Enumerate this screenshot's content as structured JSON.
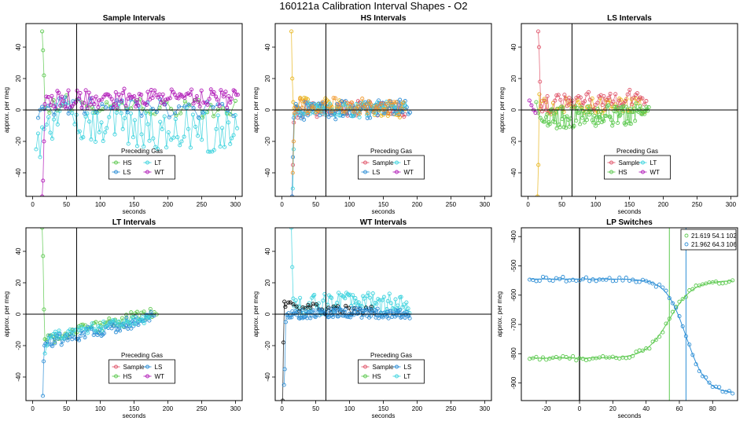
{
  "figure_title": "160121a   Calibration Interval Shapes - O2",
  "colors": {
    "Sample": "#E0566B",
    "HS": "#5CC94F",
    "LS": "#2E8FD6",
    "LT": "#3ED3DE",
    "WT": "#B11BB8",
    "ZERO": "#111111",
    "gold": "#E8B51C",
    "orange": "#F29A2E"
  },
  "chart_data": [
    {
      "id": "sample",
      "type": "scatter",
      "title": "Sample Intervals",
      "xlabel": "seconds",
      "ylabel": "approx. per meg",
      "xlim": [
        -10,
        310
      ],
      "ylim": [
        -55,
        55
      ],
      "xticks": [
        0,
        50,
        100,
        150,
        200,
        250,
        300
      ],
      "yticks": [
        -40,
        -20,
        0,
        20,
        40
      ],
      "vline": 65,
      "hline": 0,
      "legend": {
        "title": "Preceding Gas",
        "position": "bottom-center",
        "entries": [
          "HS",
          "LT",
          "LS",
          "WT"
        ]
      },
      "series": [
        {
          "name": "HS",
          "spike": true,
          "x0": 14,
          "y0": 50,
          "y1": 38,
          "y2": 22,
          "levels": [
            4,
            2,
            0
          ],
          "noise": 6,
          "xmax": 300,
          "dx": 6
        },
        {
          "name": "LT",
          "spike": false,
          "x0": 5,
          "y0": -25,
          "y1": -15,
          "y2": -30,
          "levels": [
            -5,
            -10,
            -15
          ],
          "noise": 14,
          "xmax": 305,
          "dx": 3
        },
        {
          "name": "LS",
          "spike": false,
          "x0": 8,
          "y0": -5,
          "y1": 0,
          "y2": 2,
          "levels": [
            3,
            1,
            0
          ],
          "noise": 6,
          "xmax": 300,
          "dx": 7
        },
        {
          "name": "WT",
          "spike": true,
          "x0": 14,
          "y0": -55,
          "y1": -45,
          "y2": -20,
          "levels": [
            6,
            8,
            7
          ],
          "noise": 6,
          "xmax": 305,
          "dx": 2.5
        }
      ]
    },
    {
      "id": "hs",
      "type": "scatter",
      "title": "HS Intervals",
      "xlabel": "seconds",
      "ylabel": "approx. per meg",
      "xlim": [
        -10,
        310
      ],
      "ylim": [
        -55,
        55
      ],
      "xticks": [
        0,
        50,
        100,
        150,
        200,
        250,
        300
      ],
      "yticks": [
        -40,
        -20,
        0,
        20,
        40
      ],
      "vline": 65,
      "hline": 0,
      "legend": {
        "title": "Preceding Gas",
        "position": "bottom-center",
        "entries": [
          "Sample",
          "LT",
          "LS",
          "WT"
        ]
      },
      "series": [
        {
          "name": "gold",
          "spike": true,
          "x0": 14,
          "y0": 50,
          "y1": 20,
          "y2": 5,
          "levels": [
            3,
            2,
            0
          ],
          "noise": 5,
          "xmax": 185,
          "dx": 3
        },
        {
          "name": "Sample",
          "spike": true,
          "x0": 15,
          "y0": -55,
          "y1": -35,
          "y2": -8,
          "levels": [
            0,
            1,
            0
          ],
          "noise": 5,
          "xmax": 185,
          "dx": 2.5
        },
        {
          "name": "LS",
          "spike": true,
          "x0": 15,
          "y0": -55,
          "y1": -30,
          "y2": -5,
          "levels": [
            -1,
            0,
            2
          ],
          "noise": 6,
          "xmax": 190,
          "dx": 2
        },
        {
          "name": "LT",
          "spike": true,
          "x0": 16,
          "y0": -50,
          "y1": -25,
          "y2": -3,
          "levels": [
            2,
            0,
            1
          ],
          "noise": 5,
          "xmax": 185,
          "dx": 3
        },
        {
          "name": "orange",
          "spike": true,
          "x0": 16,
          "y0": -40,
          "y1": -20,
          "y2": -2,
          "levels": [
            2,
            3,
            1
          ],
          "noise": 5,
          "xmax": 180,
          "dx": 3
        }
      ]
    },
    {
      "id": "ls",
      "type": "scatter",
      "title": "LS Intervals",
      "xlabel": "seconds",
      "ylabel": "approx. per meg",
      "xlim": [
        -10,
        310
      ],
      "ylim": [
        -55,
        55
      ],
      "xticks": [
        0,
        50,
        100,
        150,
        200,
        250,
        300
      ],
      "yticks": [
        -40,
        -20,
        0,
        20,
        40
      ],
      "vline": 65,
      "hline": 0,
      "legend": {
        "title": "Preceding Gas",
        "position": "bottom-center",
        "entries": [
          "Sample",
          "LT",
          "HS",
          "WT"
        ]
      },
      "series": [
        {
          "name": "gold",
          "spike": true,
          "x0": 14,
          "y0": -55,
          "y1": -35,
          "y2": 10,
          "levels": [
            2,
            3,
            2
          ],
          "noise": 5,
          "xmax": 175,
          "dx": 3
        },
        {
          "name": "Sample",
          "spike": true,
          "x0": 15,
          "y0": 50,
          "y1": 40,
          "y2": 18,
          "levels": [
            4,
            6,
            8
          ],
          "noise": 6,
          "xmax": 175,
          "dx": 2.5
        },
        {
          "name": "HS",
          "spike": false,
          "x0": 12,
          "y0": 5,
          "y1": -2,
          "y2": -5,
          "levels": [
            -5,
            -4,
            -2
          ],
          "noise": 7,
          "xmax": 180,
          "dx": 1.5
        },
        {
          "name": "WT",
          "spike": false,
          "x0": 2,
          "y0": 6,
          "y1": 3,
          "y2": 0,
          "levels": [
            0,
            1,
            0
          ],
          "noise": 2,
          "xmax": 14,
          "dx": 3
        }
      ]
    },
    {
      "id": "lt",
      "type": "scatter",
      "title": "LT Intervals",
      "xlabel": "seconds",
      "ylabel": "approx. per meg",
      "xlim": [
        -10,
        310
      ],
      "ylim": [
        -55,
        55
      ],
      "xticks": [
        0,
        50,
        100,
        150,
        200,
        250,
        300
      ],
      "yticks": [
        -40,
        -20,
        0,
        20,
        40
      ],
      "vline": 65,
      "hline": 0,
      "legend": {
        "title": "Preceding Gas",
        "position": "bottom-center",
        "entries": [
          "Sample",
          "LS",
          "HS",
          "WT"
        ]
      },
      "series": [
        {
          "name": "HS",
          "spike": true,
          "x0": 14,
          "y0": 55,
          "y1": 37,
          "y2": 3,
          "levels": [
            -15,
            -8,
            2
          ],
          "noise": 4,
          "xmax": 185,
          "dx": 3
        },
        {
          "name": "LS",
          "spike": true,
          "x0": 15,
          "y0": -52,
          "y1": -30,
          "y2": -20,
          "levels": [
            -18,
            -10,
            -2
          ],
          "noise": 4,
          "xmax": 180,
          "dx": 2
        },
        {
          "name": "LT",
          "spike": false,
          "x0": 18,
          "y0": -25,
          "y1": -20,
          "y2": -15,
          "levels": [
            -15,
            -8,
            -3
          ],
          "noise": 3,
          "xmax": 175,
          "dx": 3
        }
      ]
    },
    {
      "id": "wt",
      "type": "scatter",
      "title": "WT Intervals",
      "xlabel": "seconds",
      "ylabel": "approx. per meg",
      "xlim": [
        -10,
        310
      ],
      "ylim": [
        -55,
        55
      ],
      "xticks": [
        0,
        50,
        100,
        150,
        200,
        250,
        300
      ],
      "yticks": [
        -40,
        -20,
        0,
        20,
        40
      ],
      "vline": 65,
      "hline": 0,
      "legend": {
        "title": "Preceding Gas",
        "position": "bottom-center",
        "entries": [
          "Sample",
          "LS",
          "HS",
          "LT"
        ]
      },
      "series": [
        {
          "name": "LT",
          "spike": true,
          "x0": 14,
          "y0": 55,
          "y1": 30,
          "y2": 10,
          "levels": [
            6,
            8,
            6
          ],
          "noise": 7,
          "xmax": 190,
          "dx": 2
        },
        {
          "name": "ZERO",
          "spike": true,
          "x0": 1,
          "y0": -55,
          "y1": -18,
          "y2": 8,
          "levels": [
            5,
            3,
            2
          ],
          "noise": 3,
          "xmax": 140,
          "dx": 4
        },
        {
          "name": "LS",
          "spike": true,
          "x0": 3,
          "y0": -45,
          "y1": -35,
          "y2": -5,
          "levels": [
            0,
            1,
            0
          ],
          "noise": 3,
          "xmax": 190,
          "dx": 1.5
        }
      ]
    },
    {
      "id": "lp",
      "type": "line",
      "title": "LP Switches",
      "xlabel": "seconds",
      "ylabel": "approx. per meg",
      "xlim": [
        -35,
        95
      ],
      "ylim": [
        -960,
        -370
      ],
      "xticks": [
        -20,
        0,
        20,
        40,
        60,
        80
      ],
      "yticks": [
        -900,
        -800,
        -700,
        -600,
        -500,
        -400
      ],
      "vlines": [
        {
          "x": 0,
          "color": "ZERO"
        },
        {
          "x": 54,
          "color": "HS"
        },
        {
          "x": 64,
          "color": "LS"
        }
      ],
      "legend": {
        "position": "top-right",
        "entries": [
          {
            "label": "21.619 54.1 102",
            "color": "HS"
          },
          {
            "label": "21.962 64.3 106",
            "color": "LS"
          }
        ]
      },
      "series": [
        {
          "name": "21.619 54.1 102",
          "color": "HS",
          "low": -815,
          "high": -550,
          "mid": 54,
          "width": 7,
          "direction": "up",
          "x": [
            -30,
            92
          ],
          "dx": 2
        },
        {
          "name": "21.962 64.3 106",
          "color": "LS",
          "low": -935,
          "high": -545,
          "mid": 64,
          "width": 6,
          "direction": "down",
          "x": [
            -30,
            92
          ],
          "dx": 2
        }
      ]
    }
  ]
}
